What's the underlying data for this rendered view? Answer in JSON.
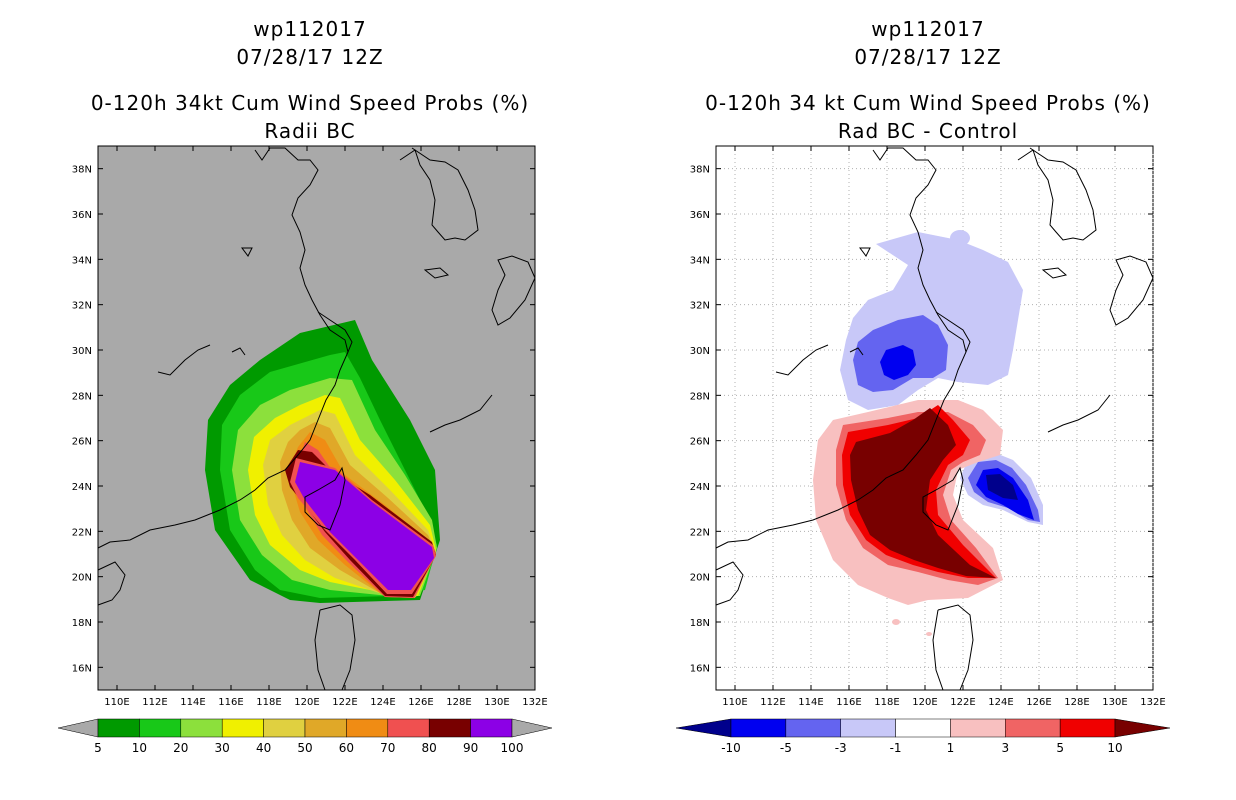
{
  "colors": {
    "land_bg": "#a9a9a9",
    "coast": "#000000",
    "grid": "#b0b0b0"
  },
  "chart_data": [
    {
      "type": "contour_map",
      "title": "wp112017",
      "subtitle": "07/28/17 12Z",
      "title2": "0-120h 34kt Cum Wind Speed Probs (%)",
      "title3": "Radii BC",
      "x_ticks": [
        "110E",
        "112E",
        "114E",
        "116E",
        "118E",
        "120E",
        "122E",
        "124E",
        "126E",
        "128E",
        "130E",
        "132E"
      ],
      "y_ticks": [
        "16N",
        "18N",
        "20N",
        "22N",
        "24N",
        "26N",
        "28N",
        "30N",
        "32N",
        "34N",
        "36N",
        "38N"
      ],
      "xlim": [
        109,
        132
      ],
      "ylim": [
        15,
        39
      ],
      "colorbar": {
        "labels": [
          "5",
          "10",
          "20",
          "30",
          "40",
          "50",
          "60",
          "70",
          "80",
          "90",
          "100"
        ],
        "colors": [
          "#009a00",
          "#18c818",
          "#8ce03c",
          "#f0f000",
          "#e0d040",
          "#e0a828",
          "#f08c14",
          "#f05050",
          "#780000",
          "#8c00e6"
        ]
      }
    },
    {
      "type": "contour_map",
      "title": "wp112017",
      "subtitle": "07/28/17 12Z",
      "title2": "0-120h 34 kt Cum Wind Speed Probs (%)",
      "title3": "Rad BC - Control",
      "x_ticks": [
        "110E",
        "112E",
        "114E",
        "116E",
        "118E",
        "120E",
        "122E",
        "124E",
        "126E",
        "128E",
        "130E",
        "132E"
      ],
      "y_ticks": [
        "16N",
        "18N",
        "20N",
        "22N",
        "24N",
        "26N",
        "28N",
        "30N",
        "32N",
        "34N",
        "36N",
        "38N"
      ],
      "xlim": [
        109,
        132
      ],
      "ylim": [
        15,
        39
      ],
      "colorbar": {
        "labels": [
          "-10",
          "-5",
          "-3",
          "-1",
          "1",
          "3",
          "5",
          "10"
        ],
        "colors": [
          "#00008c",
          "#0000f0",
          "#6464f0",
          "#c8c8f8",
          "#ffffff",
          "#f8c0c0",
          "#f06464",
          "#f00000",
          "#780000"
        ]
      }
    }
  ]
}
